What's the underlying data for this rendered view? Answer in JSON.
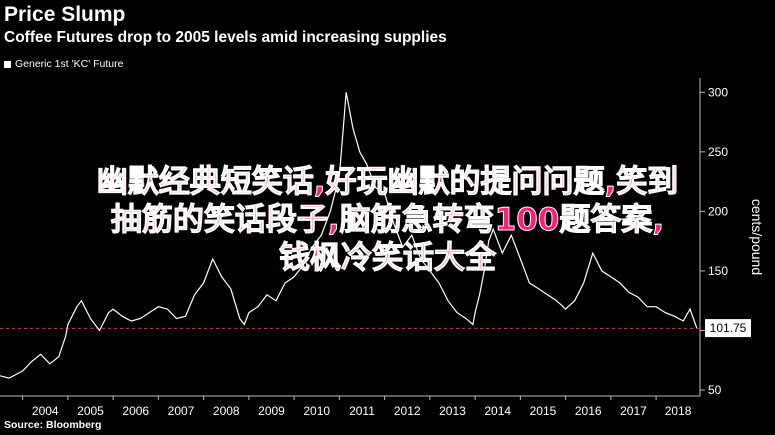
{
  "header": {
    "title": "Price Slump",
    "subtitle": "Coffee Futures drop to 2005 levels amid increasing supplies"
  },
  "legend": {
    "label": "Generic 1st 'KC' Future"
  },
  "source": "Source: Bloomberg",
  "overlay": {
    "line1": "幽默经典短笑话,好玩幽默的提问问题,笑到",
    "line2": "抽筋的笑话段子,脑筋急转弯100题答案,",
    "line3": "钱枫冷笑话大全"
  },
  "chart_data": {
    "type": "line",
    "series": [
      {
        "name": "Generic 1st 'KC' Future",
        "x": [
          2003.5,
          2003.7,
          2003.9,
          2004.0,
          2004.2,
          2004.4,
          2004.6,
          2004.8,
          2004.95,
          2005.0,
          2005.2,
          2005.3,
          2005.5,
          2005.7,
          2005.9,
          2006.0,
          2006.2,
          2006.4,
          2006.6,
          2006.8,
          2007.0,
          2007.2,
          2007.4,
          2007.6,
          2007.8,
          2008.0,
          2008.2,
          2008.4,
          2008.6,
          2008.8,
          2008.9,
          2009.0,
          2009.2,
          2009.4,
          2009.6,
          2009.8,
          2010.0,
          2010.2,
          2010.4,
          2010.6,
          2010.8,
          2011.0,
          2011.15,
          2011.3,
          2011.45,
          2011.6,
          2011.8,
          2012.0,
          2012.2,
          2012.4,
          2012.6,
          2012.8,
          2013.0,
          2013.2,
          2013.4,
          2013.6,
          2013.8,
          2013.95,
          2014.0,
          2014.1,
          2014.2,
          2014.3,
          2014.4,
          2014.6,
          2014.8,
          2015.0,
          2015.2,
          2015.4,
          2015.6,
          2015.8,
          2016.0,
          2016.2,
          2016.4,
          2016.6,
          2016.8,
          2017.0,
          2017.2,
          2017.4,
          2017.6,
          2017.8,
          2018.0,
          2018.2,
          2018.4,
          2018.6,
          2018.75,
          2018.9
        ],
        "y": [
          62,
          60,
          64,
          66,
          74,
          80,
          72,
          78,
          95,
          105,
          120,
          125,
          110,
          100,
          115,
          118,
          112,
          108,
          110,
          115,
          120,
          118,
          110,
          112,
          130,
          140,
          160,
          145,
          135,
          110,
          105,
          115,
          120,
          130,
          125,
          140,
          145,
          155,
          170,
          180,
          200,
          230,
          300,
          270,
          250,
          240,
          220,
          215,
          190,
          170,
          180,
          160,
          150,
          140,
          125,
          115,
          110,
          105,
          115,
          130,
          150,
          175,
          185,
          165,
          180,
          160,
          140,
          135,
          130,
          125,
          118,
          125,
          140,
          165,
          150,
          145,
          140,
          132,
          128,
          120,
          120,
          115,
          112,
          108,
          118,
          102
        ]
      }
    ],
    "ylabel": "cents/pound",
    "x_ticks": [
      "2004",
      "2005",
      "2006",
      "2007",
      "2008",
      "2009",
      "2010",
      "2011",
      "2012",
      "2013",
      "2014",
      "2015",
      "2016",
      "2017",
      "2018"
    ],
    "y_ticks": [
      50,
      100,
      150,
      200,
      250,
      300
    ],
    "ylim": [
      45,
      312
    ],
    "xlim": [
      2003.5,
      2018.97
    ],
    "last_value_label": "101.75",
    "reference_line": 101.75,
    "grid": false
  }
}
